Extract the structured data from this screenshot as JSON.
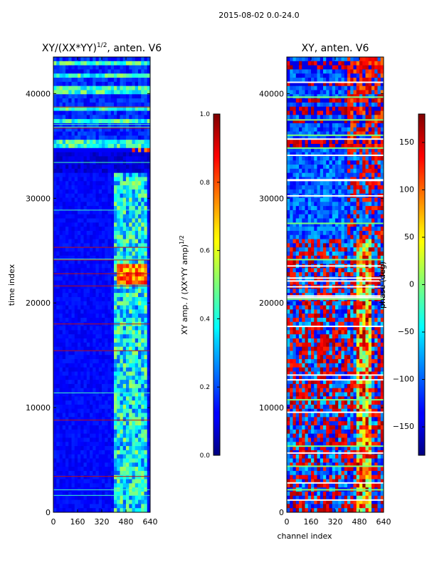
{
  "figure": {
    "suptitle": "2015-08-02 0.0-24.0"
  },
  "chart_data": [
    {
      "type": "heatmap",
      "title": "XY/(XX*YY)^1/2, anten. V6",
      "title_main": "XY/(XX*YY)",
      "title_exp": "1/2",
      "title_tail": ", anten. V6",
      "xlabel": "",
      "ylabel": "time index",
      "xlim": [
        0,
        640
      ],
      "ylim": [
        0,
        43500
      ],
      "xticks": [
        "0",
        "160",
        "320",
        "480",
        "640"
      ],
      "xtick_values": [
        0,
        160,
        320,
        480,
        640
      ],
      "yticks": [
        "0",
        "10000",
        "20000",
        "30000",
        "40000"
      ],
      "ytick_values": [
        0,
        10000,
        20000,
        30000,
        40000
      ],
      "colormap": "jet",
      "colorbar": {
        "label": "XY amp. / (XX*YY amp)^1/2",
        "label_main": "XY amp. / (XX*YY amp)",
        "label_exp": "1/2",
        "range": [
          0,
          1
        ],
        "ticks": [
          "0.0",
          "0.2",
          "0.4",
          "0.6",
          "0.8",
          "1.0"
        ],
        "tick_values": [
          0,
          0.2,
          0.4,
          0.6,
          0.8,
          1.0
        ]
      }
    },
    {
      "type": "heatmap",
      "title": "XY, anten. V6",
      "xlabel": "channel index",
      "ylabel": "",
      "xlim": [
        0,
        640
      ],
      "ylim": [
        0,
        43500
      ],
      "xticks": [
        "0",
        "160",
        "320",
        "480",
        "640"
      ],
      "xtick_values": [
        0,
        160,
        320,
        480,
        640
      ],
      "yticks": [
        "0",
        "10000",
        "20000",
        "30000",
        "40000"
      ],
      "ytick_values": [
        0,
        10000,
        20000,
        30000,
        40000
      ],
      "colormap": "jet",
      "colorbar": {
        "label": "phase (deg)",
        "range": [
          -180,
          180
        ],
        "ticks": [
          "−150",
          "−100",
          "−50",
          "0",
          "50",
          "100",
          "150"
        ],
        "tick_values": [
          -150,
          -100,
          -50,
          0,
          50,
          100,
          150
        ]
      }
    }
  ]
}
